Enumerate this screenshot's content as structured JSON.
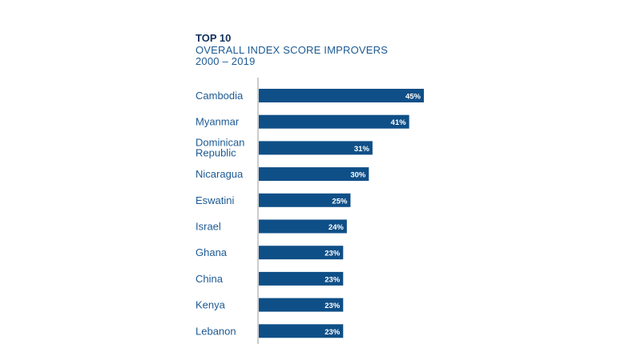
{
  "chart_data": {
    "type": "bar",
    "orientation": "horizontal",
    "title": "TOP 10",
    "subtitle": "OVERALL INDEX SCORE IMPROVERS",
    "subtitle2": "2000 – 2019",
    "categories": [
      "Cambodia",
      "Myanmar",
      "Dominican Republic",
      "Nicaragua",
      "Eswatini",
      "Israel",
      "Ghana",
      "China",
      "Kenya",
      "Lebanon"
    ],
    "values": [
      45,
      41,
      31,
      30,
      25,
      24,
      23,
      23,
      23,
      23
    ],
    "data_labels": [
      "45%",
      "41%",
      "31%",
      "30%",
      "25%",
      "24%",
      "23%",
      "23%",
      "23%",
      "23%"
    ],
    "unit": "%",
    "xlim": [
      0,
      45
    ],
    "grid": false,
    "colors": {
      "bar": "#0f4f87",
      "label": "#1d5a93",
      "title": "#12325a",
      "axis": "#999999"
    }
  }
}
